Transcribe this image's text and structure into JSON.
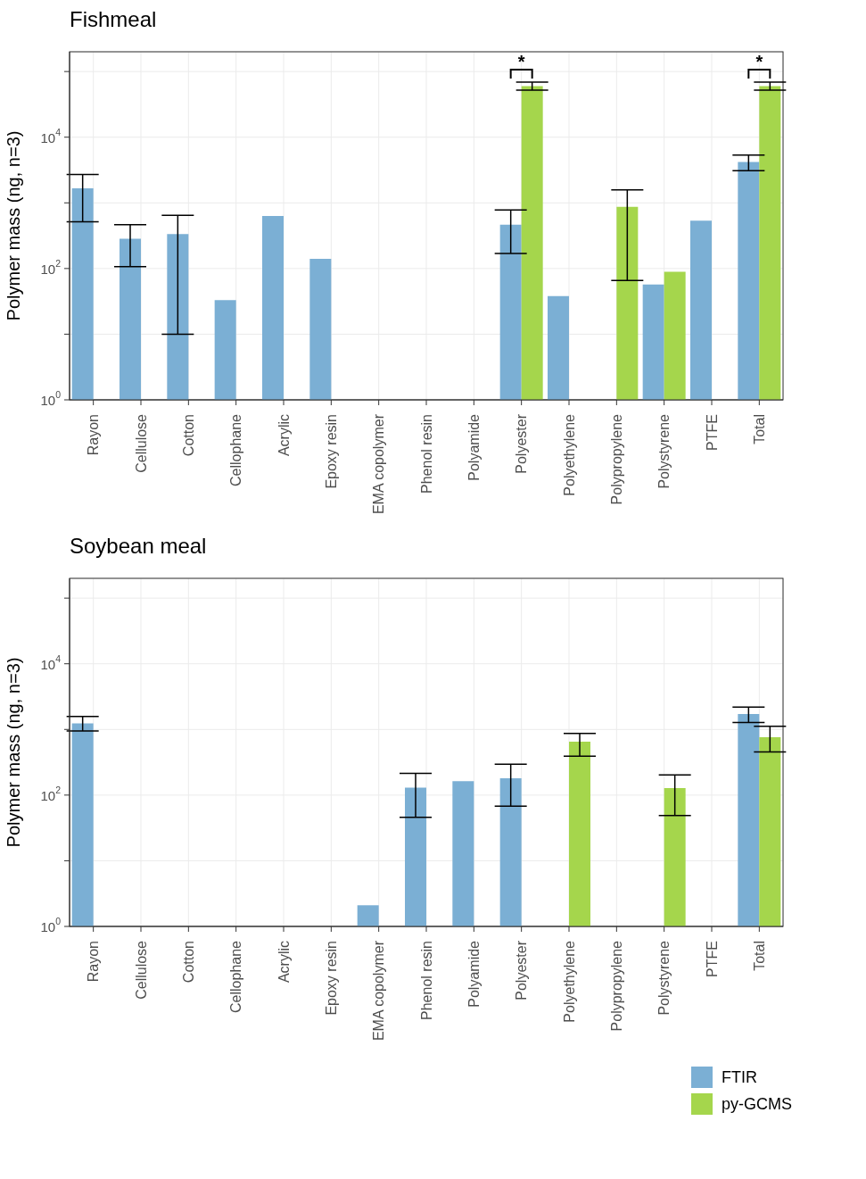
{
  "chart_data": [
    {
      "type": "bar",
      "title": "Fishmeal",
      "ylabel": "Polymer mass (ng, n=3)",
      "categories": [
        "Rayon",
        "Cellulose",
        "Cotton",
        "Cellophane",
        "Acrylic",
        "Epoxy resin",
        "EMA copolymer",
        "Phenol resin",
        "Polyamide",
        "Polyester",
        "Polyethylene",
        "Polypropylene",
        "Polystyrene",
        "PTFE",
        "Total"
      ],
      "series": [
        {
          "color": "#7bafd4",
          "values": [
            1660,
            285,
            335,
            33,
            630,
            140,
            null,
            null,
            null,
            465,
            38,
            null,
            57,
            535,
            4200
          ],
          "errors": [
            [
              515,
              2700
            ],
            [
              107,
              465
            ],
            [
              10,
              645
            ],
            null,
            null,
            null,
            null,
            null,
            null,
            [
              170,
              780
            ],
            null,
            null,
            null,
            null,
            [
              3100,
              5340
            ]
          ]
        },
        {
          "color": "#a5d64c",
          "values": [
            null,
            null,
            null,
            null,
            null,
            null,
            null,
            null,
            null,
            60000,
            null,
            870,
            89,
            null,
            60000
          ],
          "errors": [
            null,
            null,
            null,
            null,
            null,
            null,
            null,
            null,
            null,
            [
              52000,
              69000
            ],
            null,
            [
              66,
              1580
            ],
            null,
            null,
            [
              52000,
              69000
            ]
          ]
        }
      ],
      "log": "y",
      "ylim": [
        1,
        200000
      ],
      "yticks": [
        {
          "value": 1,
          "label": "10$^{0}$"
        },
        {
          "value": 10,
          "label": null
        },
        {
          "value": 100,
          "label": "10$^{2}$"
        },
        {
          "value": 1000,
          "label": null
        },
        {
          "value": 10000,
          "label": "10$^{4}$"
        },
        {
          "value": 100000,
          "label": null
        }
      ],
      "grid": true,
      "legend": false,
      "annotations": [
        "*",
        "*"
      ]
    },
    {
      "type": "bar",
      "title": "Soybean meal",
      "ylabel": "Polymer mass (ng, n=3)",
      "categories": [
        "Rayon",
        "Cellulose",
        "Cotton",
        "Cellophane",
        "Acrylic",
        "Epoxy resin",
        "EMA copolymer",
        "Phenol resin",
        "Polyamide",
        "Polyester",
        "Polyethylene",
        "Polypropylene",
        "Polystyrene",
        "PTFE",
        "Total"
      ],
      "series": [
        {
          "name": "FTIR",
          "color": "#7bafd4",
          "values": [
            1240,
            null,
            null,
            null,
            null,
            null,
            2.1,
            130,
            163,
            180,
            null,
            null,
            null,
            null,
            1720
          ],
          "errors": [
            [
              950,
              1580
            ],
            null,
            null,
            null,
            null,
            null,
            null,
            [
              46,
              215
            ],
            null,
            [
              68,
              295
            ],
            null,
            null,
            null,
            null,
            [
              1280,
              2190
            ]
          ]
        },
        {
          "name": "py-GCMS",
          "color": "#a5d64c",
          "values": [
            null,
            null,
            null,
            null,
            null,
            null,
            null,
            null,
            null,
            null,
            650,
            null,
            128,
            null,
            760
          ],
          "errors": [
            null,
            null,
            null,
            null,
            null,
            null,
            null,
            null,
            null,
            null,
            [
              390,
              870
            ],
            null,
            [
              49,
              203
            ],
            null,
            [
              455,
              1120
            ]
          ]
        }
      ],
      "log": "y",
      "ylim": [
        1,
        200000
      ],
      "yticks": [
        {
          "value": 1,
          "label": "10$^{0}$"
        },
        {
          "value": 10,
          "label": null
        },
        {
          "value": 100,
          "label": "10$^{2}$"
        },
        {
          "value": 1000,
          "label": null
        },
        {
          "value": 10000,
          "label": "10$^{4}$"
        },
        {
          "value": 100000,
          "label": null
        }
      ],
      "grid": true,
      "legend": "bottom right"
    }
  ]
}
